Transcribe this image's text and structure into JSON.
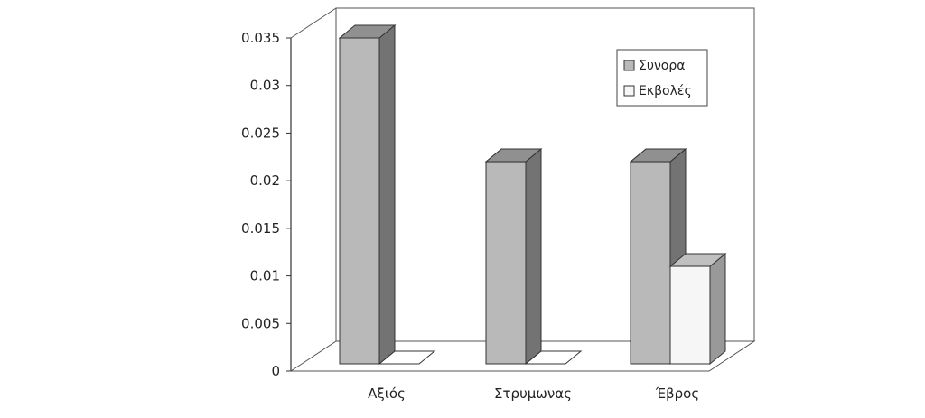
{
  "chart_data": {
    "type": "bar",
    "title": "",
    "xlabel": "",
    "ylabel": "",
    "categories": [
      "Αξιός",
      "Στρυμωνας",
      "Έβρος"
    ],
    "series": [
      {
        "name": "Συνορα",
        "values": [
          0.035,
          0.022,
          0.022
        ],
        "color": "#b9b9b9"
      },
      {
        "name": "Εκβολές",
        "values": [
          0.0,
          0.0,
          0.011
        ],
        "color": "#f6f6f6"
      }
    ],
    "ylim": [
      0,
      0.035
    ],
    "yticks": [
      "0",
      "0.005",
      "0.01",
      "0.015",
      "0.02",
      "0.025",
      "0.03",
      "0.035"
    ],
    "grid": false,
    "legend_position": "top-right",
    "style": "3d-bar"
  }
}
